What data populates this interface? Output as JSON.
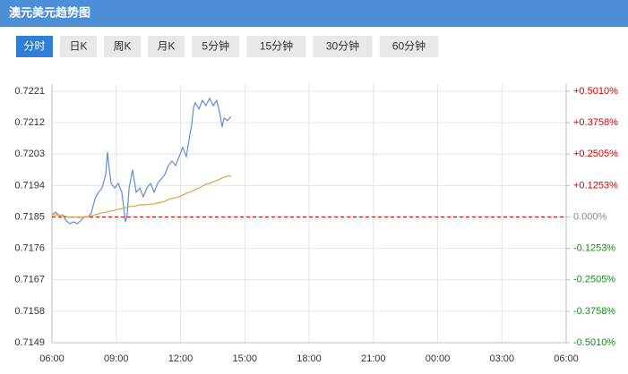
{
  "header": {
    "title": "澳元美元趋势图"
  },
  "tabs": [
    "分时",
    "日K",
    "周K",
    "月K",
    "5分钟",
    "15分钟",
    "30分钟",
    "60分钟"
  ],
  "active_tab": 0,
  "chart_data": {
    "type": "line",
    "xlim": [
      0,
      24
    ],
    "xticks": [
      {
        "value": 0,
        "label": "06:00"
      },
      {
        "value": 3,
        "label": "09:00"
      },
      {
        "value": 6,
        "label": "12:00"
      },
      {
        "value": 9,
        "label": "15:00"
      },
      {
        "value": 12,
        "label": "18:00"
      },
      {
        "value": 15,
        "label": "21:00"
      },
      {
        "value": 18,
        "label": "00:00"
      },
      {
        "value": 21,
        "label": "03:00"
      },
      {
        "value": 24,
        "label": "06:00"
      }
    ],
    "ylim": [
      0.7149,
      0.7221
    ],
    "yticks": [
      0.7221,
      0.7212,
      0.7203,
      0.7194,
      0.7185,
      0.7176,
      0.7167,
      0.7158,
      0.7149
    ],
    "y2lim": [
      -0.501,
      0.501
    ],
    "y2ticks": [
      {
        "value": 0.501,
        "label": "+0.5010%"
      },
      {
        "value": 0.3758,
        "label": "+0.3758%"
      },
      {
        "value": 0.2505,
        "label": "+0.2505%"
      },
      {
        "value": 0.1253,
        "label": "+0.1253%"
      },
      {
        "value": 0,
        "label": "0.000%"
      },
      {
        "value": -0.1253,
        "label": "-0.1253%"
      },
      {
        "value": -0.2505,
        "label": "-0.2505%"
      },
      {
        "value": -0.3758,
        "label": "-0.3758%"
      },
      {
        "value": -0.501,
        "label": "-0.5010%"
      }
    ],
    "baseline": 0.7185,
    "baseline_color": "#d40000",
    "grid": true,
    "x": [
      0,
      0.17,
      0.33,
      0.5,
      0.67,
      0.84,
      1.0,
      1.17,
      1.34,
      1.51,
      1.67,
      1.84,
      2.01,
      2.17,
      2.34,
      2.51,
      2.59,
      2.68,
      2.76,
      2.93,
      3.09,
      3.26,
      3.43,
      3.51,
      3.6,
      3.76,
      3.93,
      4.1,
      4.26,
      4.43,
      4.6,
      4.77,
      4.93,
      5.1,
      5.27,
      5.43,
      5.6,
      5.77,
      5.94,
      6.1,
      6.27,
      6.44,
      6.52,
      6.61,
      6.69,
      6.86,
      7.02,
      7.19,
      7.36,
      7.53,
      7.69,
      7.86,
      7.94,
      8.03,
      8.19,
      8.36
    ],
    "series": [
      {
        "color": "#5b8fd6",
        "values": [
          0.71856,
          0.71864,
          0.71854,
          0.71856,
          0.71839,
          0.71831,
          0.71836,
          0.71831,
          0.71839,
          0.71851,
          0.71849,
          0.71862,
          0.71903,
          0.71921,
          0.71933,
          0.71972,
          0.72036,
          0.71985,
          0.71946,
          0.71933,
          0.71946,
          0.71921,
          0.71836,
          0.71856,
          0.71933,
          0.71985,
          0.71921,
          0.71933,
          0.71908,
          0.71933,
          0.71946,
          0.71921,
          0.71946,
          0.71959,
          0.71972,
          0.71997,
          0.7201,
          0.71997,
          0.72023,
          0.72049,
          0.72023,
          0.72087,
          0.72113,
          0.72164,
          0.72177,
          0.72159,
          0.72184,
          0.72169,
          0.7219,
          0.72169,
          0.72184,
          0.72138,
          0.72108,
          0.72133,
          0.72126,
          0.72138
        ]
      },
      {
        "color": "#d4a540",
        "values": [
          0.71856,
          0.71856,
          0.71856,
          0.71854,
          0.71851,
          0.71849,
          0.71849,
          0.71849,
          0.71849,
          0.71849,
          0.71851,
          0.71854,
          0.71856,
          0.71859,
          0.71862,
          0.71864,
          0.71864,
          0.71867,
          0.71867,
          0.71869,
          0.71872,
          0.71874,
          0.71877,
          0.71877,
          0.7188,
          0.7188,
          0.71882,
          0.71885,
          0.71885,
          0.71885,
          0.71887,
          0.71887,
          0.7189,
          0.71892,
          0.71895,
          0.719,
          0.71903,
          0.71905,
          0.71908,
          0.71913,
          0.71918,
          0.71921,
          0.71923,
          0.71926,
          0.71928,
          0.71933,
          0.71938,
          0.71944,
          0.71946,
          0.71951,
          0.71954,
          0.71959,
          0.71962,
          0.71964,
          0.71967,
          0.71967
        ]
      }
    ]
  }
}
